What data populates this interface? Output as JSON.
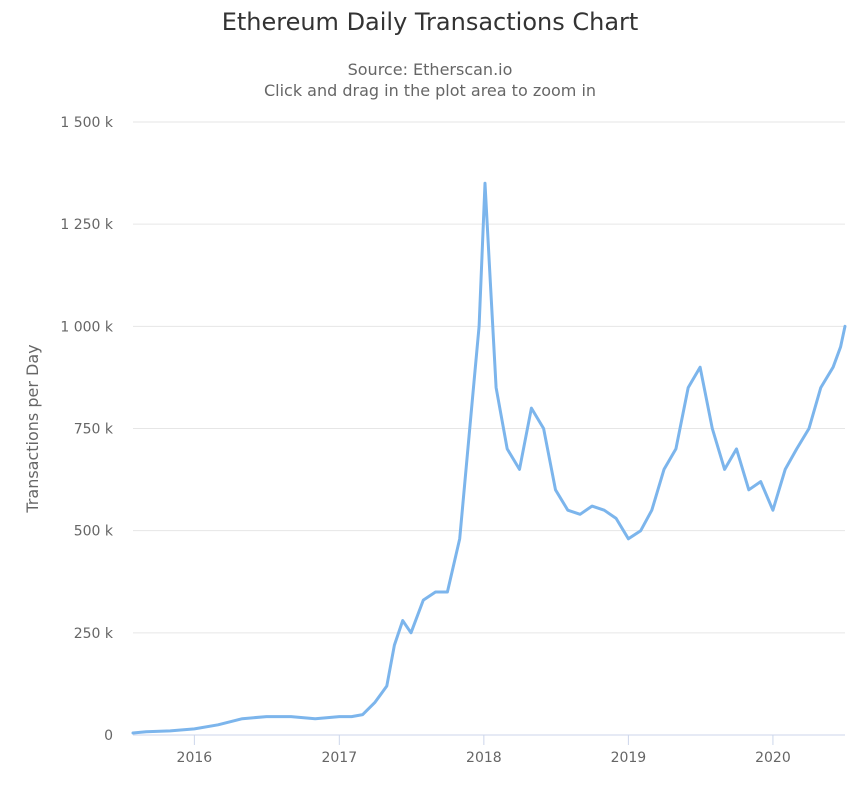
{
  "chart_data": {
    "type": "line",
    "title": "Ethereum Daily Transactions Chart",
    "subtitles": [
      "Source: Etherscan.io",
      "Click and drag in the plot area to zoom in"
    ],
    "ylabel": "Transactions per Day",
    "xlabel": "",
    "ylim": [
      0,
      1500000
    ],
    "xlim": [
      "2015-07-30",
      "2020-07-01"
    ],
    "grid": true,
    "line_color": "#7cb5ec",
    "y_ticks": [
      {
        "value": 0,
        "label": "0"
      },
      {
        "value": 250000,
        "label": "250 k"
      },
      {
        "value": 500000,
        "label": "500 k"
      },
      {
        "value": 750000,
        "label": "750 k"
      },
      {
        "value": 1000000,
        "label": "1 000 k"
      },
      {
        "value": 1250000,
        "label": "1 250 k"
      },
      {
        "value": 1500000,
        "label": "1 500 k"
      }
    ],
    "x_ticks": [
      {
        "value": "2016-01-01",
        "label": "2016"
      },
      {
        "value": "2017-01-01",
        "label": "2017"
      },
      {
        "value": "2018-01-01",
        "label": "2018"
      },
      {
        "value": "2019-01-01",
        "label": "2019"
      },
      {
        "value": "2020-01-01",
        "label": "2020"
      }
    ],
    "series": [
      {
        "x": [
          "2015-07-30",
          "2015-09-01",
          "2015-11-01",
          "2016-01-01",
          "2016-03-01",
          "2016-05-01",
          "2016-07-01",
          "2016-09-01",
          "2016-11-01",
          "2017-01-01",
          "2017-02-01",
          "2017-03-01",
          "2017-04-01",
          "2017-05-01",
          "2017-05-20",
          "2017-06-10",
          "2017-07-01",
          "2017-08-01",
          "2017-09-01",
          "2017-10-01",
          "2017-11-01",
          "2017-12-01",
          "2017-12-20",
          "2018-01-04",
          "2018-01-15",
          "2018-02-01",
          "2018-03-01",
          "2018-04-01",
          "2018-05-01",
          "2018-06-01",
          "2018-07-01",
          "2018-08-01",
          "2018-09-01",
          "2018-10-01",
          "2018-11-01",
          "2018-12-01",
          "2019-01-01",
          "2019-02-01",
          "2019-03-01",
          "2019-04-01",
          "2019-05-01",
          "2019-06-01",
          "2019-07-01",
          "2019-08-01",
          "2019-09-01",
          "2019-10-01",
          "2019-11-01",
          "2019-12-01",
          "2020-01-01",
          "2020-02-01",
          "2020-03-01",
          "2020-04-01",
          "2020-05-01",
          "2020-06-01",
          "2020-06-20",
          "2020-07-01"
        ],
        "values": [
          5000,
          8000,
          10000,
          15000,
          25000,
          40000,
          45000,
          45000,
          40000,
          45000,
          45000,
          50000,
          80000,
          120000,
          220000,
          280000,
          250000,
          330000,
          350000,
          350000,
          480000,
          800000,
          1000000,
          1350000,
          1150000,
          850000,
          700000,
          650000,
          800000,
          750000,
          600000,
          550000,
          540000,
          560000,
          550000,
          530000,
          480000,
          500000,
          550000,
          650000,
          700000,
          850000,
          900000,
          750000,
          650000,
          700000,
          600000,
          620000,
          550000,
          650000,
          700000,
          750000,
          850000,
          900000,
          950000,
          1000000
        ]
      }
    ]
  }
}
